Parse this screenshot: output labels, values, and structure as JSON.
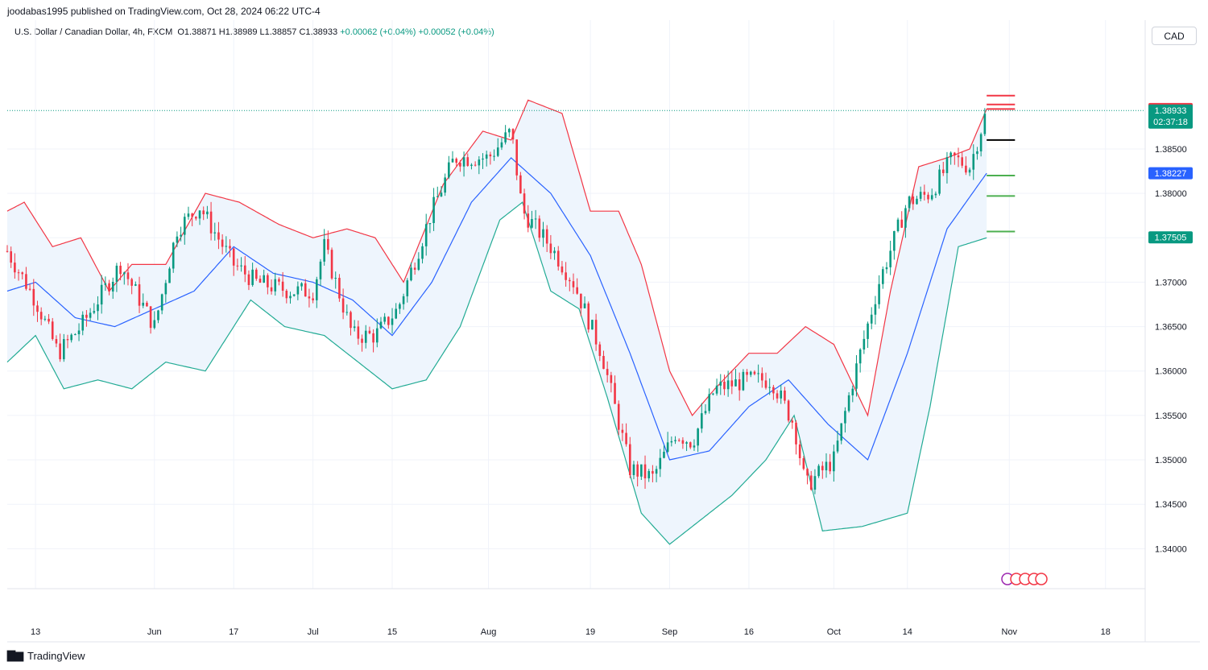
{
  "header": {
    "publisher": "joodabas1995 published on TradingView.com, Oct 28, 2024 06:22 UTC-4",
    "symbol": "U.S. Dollar / Canadian Dollar, 4h, FXCM",
    "ohlc": "O1.38871 H1.38989 L1.38857 C1.38933",
    "change1": "+0.00062 (+0.04%)",
    "change2": "+0.00052 (+0.04%)",
    "currency_button": "CAD"
  },
  "footer": {
    "brand": "TradingView",
    "brand_icon": "tradingview-logo-icon"
  },
  "colors": {
    "upper_band": "#f23645",
    "lower_band": "#22ab94",
    "basis": "#2962ff",
    "band_fill": "#eef5fd",
    "candle_up": "#089981",
    "candle_down": "#f23645",
    "support": "#4caf50",
    "resistance": "#f23645",
    "pivot": "#000000"
  },
  "chart_data": {
    "type": "candlestick",
    "title": "U.S. Dollar / Canadian Dollar, 4h, FXCM",
    "indicator": "Bollinger Bands",
    "ylim": [
      1.3355,
      1.3995
    ],
    "y_ticks": [
      1.34,
      1.345,
      1.35,
      1.355,
      1.36,
      1.365,
      1.37,
      1.375,
      1.38,
      1.385
    ],
    "y_tick_labels": [
      "1.34000",
      "1.34500",
      "1.35000",
      "1.35500",
      "1.36000",
      "1.36500",
      "1.37000",
      "",
      "1.38000",
      "1.38500"
    ],
    "x_ticks": [
      {
        "label": "13",
        "date": "2024-05-13"
      },
      {
        "label": "Jun",
        "date": "2024-06-03"
      },
      {
        "label": "17",
        "date": "2024-06-17"
      },
      {
        "label": "Jul",
        "date": "2024-07-01"
      },
      {
        "label": "15",
        "date": "2024-07-15"
      },
      {
        "label": "Aug",
        "date": "2024-08-01"
      },
      {
        "label": "19",
        "date": "2024-08-19"
      },
      {
        "label": "Sep",
        "date": "2024-09-02"
      },
      {
        "label": "16",
        "date": "2024-09-16"
      },
      {
        "label": "Oct",
        "date": "2024-10-01"
      },
      {
        "label": "14",
        "date": "2024-10-14"
      },
      {
        "label": "Nov",
        "date": "2024-11-01"
      },
      {
        "label": "18",
        "date": "2024-11-18"
      }
    ],
    "x_range": [
      "2024-05-08",
      "2024-11-25"
    ],
    "last_date": "2024-10-28",
    "price_path": [
      [
        "2024-05-08",
        1.3735
      ],
      [
        "2024-05-13",
        1.368
      ],
      [
        "2024-05-17",
        1.362
      ],
      [
        "2024-05-21",
        1.365
      ],
      [
        "2024-05-28",
        1.372
      ],
      [
        "2024-06-03",
        1.365
      ],
      [
        "2024-06-07",
        1.376
      ],
      [
        "2024-06-11",
        1.3785
      ],
      [
        "2024-06-17",
        1.372
      ],
      [
        "2024-06-21",
        1.37
      ],
      [
        "2024-06-27",
        1.369
      ],
      [
        "2024-07-01",
        1.369
      ],
      [
        "2024-07-03",
        1.374
      ],
      [
        "2024-07-08",
        1.364
      ],
      [
        "2024-07-12",
        1.364
      ],
      [
        "2024-07-16",
        1.367
      ],
      [
        "2024-07-22",
        1.378
      ],
      [
        "2024-07-26",
        1.384
      ],
      [
        "2024-08-01",
        1.384
      ],
      [
        "2024-08-05",
        1.387
      ],
      [
        "2024-08-07",
        1.378
      ],
      [
        "2024-08-12",
        1.374
      ],
      [
        "2024-08-16",
        1.37
      ],
      [
        "2024-08-21",
        1.362
      ],
      [
        "2024-08-26",
        1.349
      ],
      [
        "2024-08-30",
        1.348
      ],
      [
        "2024-09-03",
        1.353
      ],
      [
        "2024-09-06",
        1.352
      ],
      [
        "2024-09-10",
        1.358
      ],
      [
        "2024-09-16",
        1.359
      ],
      [
        "2024-09-20",
        1.359
      ],
      [
        "2024-09-24",
        1.354
      ],
      [
        "2024-09-26",
        1.347
      ],
      [
        "2024-10-01",
        1.35
      ],
      [
        "2024-10-04",
        1.358
      ],
      [
        "2024-10-09",
        1.37
      ],
      [
        "2024-10-14",
        1.379
      ],
      [
        "2024-10-18",
        1.38
      ],
      [
        "2024-10-22",
        1.384
      ],
      [
        "2024-10-25",
        1.383
      ],
      [
        "2024-10-28",
        1.38933
      ]
    ],
    "basis_path": [
      [
        "2024-05-08",
        1.369
      ],
      [
        "2024-05-13",
        1.37
      ],
      [
        "2024-05-20",
        1.366
      ],
      [
        "2024-05-27",
        1.365
      ],
      [
        "2024-06-03",
        1.367
      ],
      [
        "2024-06-10",
        1.369
      ],
      [
        "2024-06-17",
        1.374
      ],
      [
        "2024-06-24",
        1.371
      ],
      [
        "2024-07-01",
        1.37
      ],
      [
        "2024-07-08",
        1.368
      ],
      [
        "2024-07-15",
        1.364
      ],
      [
        "2024-07-22",
        1.37
      ],
      [
        "2024-07-29",
        1.379
      ],
      [
        "2024-08-05",
        1.384
      ],
      [
        "2024-08-12",
        1.38
      ],
      [
        "2024-08-19",
        1.373
      ],
      [
        "2024-08-26",
        1.362
      ],
      [
        "2024-09-02",
        1.35
      ],
      [
        "2024-09-09",
        1.351
      ],
      [
        "2024-09-16",
        1.356
      ],
      [
        "2024-09-23",
        1.359
      ],
      [
        "2024-09-30",
        1.354
      ],
      [
        "2024-10-07",
        1.35
      ],
      [
        "2024-10-14",
        1.362
      ],
      [
        "2024-10-21",
        1.376
      ],
      [
        "2024-10-28",
        1.38227
      ]
    ],
    "upper_band_path": [
      [
        "2024-05-08",
        1.378
      ],
      [
        "2024-05-11",
        1.379
      ],
      [
        "2024-05-16",
        1.374
      ],
      [
        "2024-05-21",
        1.375
      ],
      [
        "2024-05-26",
        1.369
      ],
      [
        "2024-05-30",
        1.372
      ],
      [
        "2024-06-05",
        1.372
      ],
      [
        "2024-06-12",
        1.38
      ],
      [
        "2024-06-18",
        1.379
      ],
      [
        "2024-06-25",
        1.3765
      ],
      [
        "2024-07-01",
        1.375
      ],
      [
        "2024-07-07",
        1.376
      ],
      [
        "2024-07-12",
        1.375
      ],
      [
        "2024-07-17",
        1.37
      ],
      [
        "2024-07-24",
        1.381
      ],
      [
        "2024-07-31",
        1.387
      ],
      [
        "2024-08-05",
        1.386
      ],
      [
        "2024-08-08",
        1.3905
      ],
      [
        "2024-08-14",
        1.389
      ],
      [
        "2024-08-19",
        1.378
      ],
      [
        "2024-08-24",
        1.378
      ],
      [
        "2024-08-28",
        1.372
      ],
      [
        "2024-09-02",
        1.36
      ],
      [
        "2024-09-06",
        1.355
      ],
      [
        "2024-09-10",
        1.358
      ],
      [
        "2024-09-16",
        1.362
      ],
      [
        "2024-09-21",
        1.362
      ],
      [
        "2024-09-26",
        1.365
      ],
      [
        "2024-10-01",
        1.363
      ],
      [
        "2024-10-07",
        1.355
      ],
      [
        "2024-10-11",
        1.369
      ],
      [
        "2024-10-16",
        1.383
      ],
      [
        "2024-10-21",
        1.384
      ],
      [
        "2024-10-25",
        1.385
      ],
      [
        "2024-10-28",
        1.3895
      ]
    ],
    "lower_band_path": [
      [
        "2024-05-08",
        1.361
      ],
      [
        "2024-05-13",
        1.364
      ],
      [
        "2024-05-18",
        1.358
      ],
      [
        "2024-05-24",
        1.359
      ],
      [
        "2024-05-30",
        1.358
      ],
      [
        "2024-06-05",
        1.361
      ],
      [
        "2024-06-12",
        1.36
      ],
      [
        "2024-06-20",
        1.368
      ],
      [
        "2024-06-26",
        1.365
      ],
      [
        "2024-07-03",
        1.364
      ],
      [
        "2024-07-09",
        1.361
      ],
      [
        "2024-07-15",
        1.358
      ],
      [
        "2024-07-21",
        1.359
      ],
      [
        "2024-07-27",
        1.365
      ],
      [
        "2024-08-03",
        1.377
      ],
      [
        "2024-08-07",
        1.379
      ],
      [
        "2024-08-12",
        1.369
      ],
      [
        "2024-08-17",
        1.367
      ],
      [
        "2024-08-22",
        1.357
      ],
      [
        "2024-08-28",
        1.344
      ],
      [
        "2024-09-02",
        1.3405
      ],
      [
        "2024-09-07",
        1.343
      ],
      [
        "2024-09-13",
        1.346
      ],
      [
        "2024-09-19",
        1.35
      ],
      [
        "2024-09-24",
        1.355
      ],
      [
        "2024-09-29",
        1.342
      ],
      [
        "2024-10-06",
        1.3425
      ],
      [
        "2024-10-14",
        1.344
      ],
      [
        "2024-10-18",
        1.356
      ],
      [
        "2024-10-23",
        1.374
      ],
      [
        "2024-10-28",
        1.375
      ]
    ],
    "horizontal_levels": [
      {
        "price": 1.391,
        "kind": "resistance"
      },
      {
        "price": 1.39,
        "kind": "resistance"
      },
      {
        "price": 1.3895,
        "kind": "resistance"
      },
      {
        "price": 1.386,
        "kind": "pivot"
      },
      {
        "price": 1.382,
        "kind": "support"
      },
      {
        "price": 1.3797,
        "kind": "support"
      },
      {
        "price": 1.3757,
        "kind": "support"
      }
    ],
    "price_labels": [
      {
        "text": "1.38949",
        "price": 1.38949,
        "color": "#f23645"
      },
      {
        "text": "1.38933",
        "price": 1.38933,
        "color": "#089981",
        "sub": "02:37:18"
      },
      {
        "text": "1.38227",
        "price": 1.38227,
        "color": "#2962ff"
      },
      {
        "text": "1.37505",
        "price": 1.37505,
        "color": "#089981"
      }
    ],
    "current_price": 1.38933
  }
}
